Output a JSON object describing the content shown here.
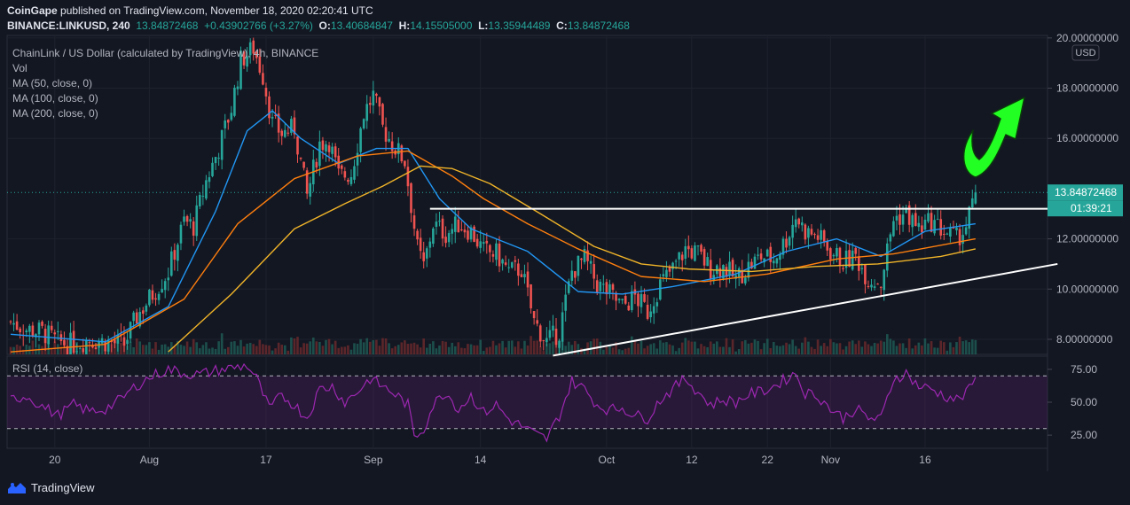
{
  "header": {
    "publisher": "CoinGape",
    "published_text": "published on TradingView.com, November 18, 2020 02:20:41 UTC",
    "symbol": "BINANCE:LINKUSD, 240",
    "price": "13.84872468",
    "change": "+0.43902766 (+3.27%)",
    "o_label": "O:",
    "o_value": "13.40684847",
    "h_label": "H:",
    "h_value": "14.15505000",
    "l_label": "L:",
    "l_value": "13.35944489",
    "c_label": "C:",
    "c_value": "13.84872468"
  },
  "legend": {
    "title": "ChainLink / US Dollar (calculated by TradingView), 4h, BINANCE",
    "vol": "Vol",
    "ma50": "MA (50, close, 0)",
    "ma100": "MA (100, close, 0)",
    "ma200": "MA (200, close, 0)"
  },
  "rsi_label": "RSI (14, close)",
  "currency": "USD",
  "last_price_label": "13.84872468",
  "countdown": "01:39:21",
  "footer_brand": "TradingView",
  "colors": {
    "bg": "#131722",
    "up": "#26a69a",
    "down": "#ef5350",
    "ma50": "#2196f3",
    "ma100": "#ff7f0e",
    "ma200": "#f0b429",
    "rsi": "#9c27b0",
    "arrow": "#22ff22"
  },
  "chart_data": {
    "type": "candlestick",
    "symbol": "LINKUSD",
    "timeframe": "4h",
    "y_ticks": [
      "20.00000000",
      "18.00000000",
      "16.00000000",
      "12.00000000",
      "10.00000000",
      "8.00000000"
    ],
    "ylim": [
      7.4,
      20.1
    ],
    "x_ticks": [
      "20",
      "Aug",
      "17",
      "Sep",
      "14",
      "Oct",
      "12",
      "22",
      "Nov",
      "16"
    ],
    "close_path": [
      [
        0,
        8.7
      ],
      [
        5,
        8.4
      ],
      [
        10,
        8.3
      ],
      [
        15,
        7.9
      ],
      [
        20,
        7.8
      ],
      [
        25,
        8.0
      ],
      [
        30,
        7.9
      ],
      [
        36,
        7.8
      ],
      [
        40,
        8.9
      ],
      [
        45,
        9.8
      ],
      [
        50,
        10.7
      ],
      [
        55,
        12.7
      ],
      [
        58,
        12.5
      ],
      [
        62,
        14.3
      ],
      [
        66,
        15.6
      ],
      [
        70,
        17.2
      ],
      [
        73,
        19.1
      ],
      [
        77,
        19.6
      ],
      [
        80,
        18.5
      ],
      [
        83,
        16.6
      ],
      [
        86,
        16.2
      ],
      [
        90,
        16.4
      ],
      [
        94,
        13.7
      ],
      [
        98,
        15.8
      ],
      [
        101,
        15.9
      ],
      [
        104,
        14.5
      ],
      [
        108,
        14.6
      ],
      [
        112,
        17.0
      ],
      [
        115,
        17.7
      ],
      [
        118,
        16.4
      ],
      [
        121,
        15.8
      ],
      [
        125,
        15.1
      ],
      [
        129,
        11.6
      ],
      [
        131,
        10.9
      ],
      [
        134,
        12.6
      ],
      [
        138,
        12.2
      ],
      [
        142,
        12.6
      ],
      [
        146,
        12.3
      ],
      [
        150,
        11.5
      ],
      [
        154,
        11.4
      ],
      [
        158,
        10.7
      ],
      [
        162,
        10.8
      ],
      [
        166,
        8.7
      ],
      [
        170,
        7.9
      ],
      [
        174,
        8.3
      ],
      [
        178,
        10.7
      ],
      [
        182,
        11.2
      ],
      [
        186,
        10.2
      ],
      [
        190,
        9.8
      ],
      [
        194,
        9.3
      ],
      [
        198,
        9.7
      ],
      [
        202,
        9.1
      ],
      [
        206,
        10.2
      ],
      [
        210,
        10.8
      ],
      [
        214,
        11.6
      ],
      [
        218,
        11.4
      ],
      [
        222,
        10.8
      ],
      [
        226,
        10.9
      ],
      [
        230,
        10.4
      ],
      [
        234,
        10.9
      ],
      [
        238,
        11.3
      ],
      [
        242,
        11.2
      ],
      [
        246,
        12.0
      ],
      [
        249,
        12.9
      ],
      [
        252,
        12.3
      ],
      [
        256,
        12.1
      ],
      [
        260,
        11.5
      ],
      [
        264,
        11.1
      ],
      [
        268,
        11.3
      ],
      [
        272,
        10.4
      ],
      [
        276,
        10.3
      ],
      [
        280,
        12.8
      ],
      [
        284,
        13.0
      ],
      [
        288,
        12.4
      ],
      [
        292,
        12.7
      ],
      [
        296,
        12.3
      ],
      [
        300,
        12.0
      ],
      [
        303,
        12.5
      ],
      [
        305,
        13.4
      ],
      [
        306,
        13.85
      ]
    ],
    "overlays": {
      "ma50": [
        [
          0,
          8.2
        ],
        [
          30,
          7.9
        ],
        [
          50,
          9.3
        ],
        [
          65,
          13.1
        ],
        [
          75,
          16.3
        ],
        [
          83,
          17.1
        ],
        [
          92,
          16.0
        ],
        [
          104,
          15.0
        ],
        [
          116,
          15.6
        ],
        [
          126,
          15.6
        ],
        [
          136,
          13.6
        ],
        [
          146,
          12.4
        ],
        [
          164,
          11.5
        ],
        [
          180,
          9.9
        ],
        [
          194,
          9.8
        ],
        [
          210,
          10.1
        ],
        [
          230,
          10.6
        ],
        [
          246,
          11.5
        ],
        [
          262,
          12.0
        ],
        [
          276,
          11.3
        ],
        [
          290,
          12.3
        ],
        [
          306,
          12.6
        ]
      ],
      "ma100": [
        [
          0,
          7.5
        ],
        [
          30,
          7.8
        ],
        [
          55,
          9.6
        ],
        [
          72,
          12.6
        ],
        [
          90,
          14.4
        ],
        [
          110,
          15.3
        ],
        [
          126,
          15.5
        ],
        [
          140,
          14.5
        ],
        [
          150,
          13.6
        ],
        [
          164,
          12.6
        ],
        [
          180,
          11.6
        ],
        [
          200,
          10.5
        ],
        [
          220,
          10.3
        ],
        [
          240,
          10.6
        ],
        [
          262,
          11.2
        ],
        [
          280,
          11.4
        ],
        [
          306,
          12.0
        ]
      ],
      "ma200": [
        [
          50,
          7.5
        ],
        [
          70,
          9.8
        ],
        [
          90,
          12.4
        ],
        [
          106,
          13.4
        ],
        [
          118,
          14.1
        ],
        [
          130,
          14.9
        ],
        [
          140,
          14.8
        ],
        [
          152,
          14.2
        ],
        [
          168,
          13.0
        ],
        [
          185,
          11.7
        ],
        [
          200,
          11.0
        ],
        [
          215,
          10.8
        ],
        [
          235,
          10.7
        ],
        [
          255,
          10.9
        ],
        [
          275,
          11.0
        ],
        [
          295,
          11.3
        ],
        [
          306,
          11.6
        ]
      ]
    },
    "trendlines": {
      "resistance": [
        [
          133,
          13.2
        ],
        [
          332,
          13.2
        ]
      ],
      "support": [
        [
          172,
          7.35
        ],
        [
          332,
          11.0
        ]
      ]
    },
    "rsi": {
      "name": "RSI (14, close)",
      "ticks": [
        "75.00",
        "50.00",
        "25.00"
      ],
      "band": [
        30,
        70
      ],
      "ylim": [
        15,
        85
      ],
      "path": [
        [
          0,
          52
        ],
        [
          5,
          55
        ],
        [
          10,
          47
        ],
        [
          15,
          40
        ],
        [
          20,
          48
        ],
        [
          25,
          43
        ],
        [
          30,
          45
        ],
        [
          35,
          52
        ],
        [
          40,
          63
        ],
        [
          45,
          70
        ],
        [
          50,
          75
        ],
        [
          55,
          72
        ],
        [
          60,
          71
        ],
        [
          65,
          74
        ],
        [
          70,
          76
        ],
        [
          75,
          78
        ],
        [
          78,
          68
        ],
        [
          82,
          45
        ],
        [
          86,
          55
        ],
        [
          90,
          48
        ],
        [
          94,
          38
        ],
        [
          98,
          60
        ],
        [
          102,
          62
        ],
        [
          106,
          50
        ],
        [
          110,
          58
        ],
        [
          114,
          68
        ],
        [
          118,
          62
        ],
        [
          122,
          56
        ],
        [
          126,
          48
        ],
        [
          128,
          24
        ],
        [
          131,
          30
        ],
        [
          134,
          48
        ],
        [
          138,
          58
        ],
        [
          142,
          45
        ],
        [
          146,
          55
        ],
        [
          150,
          42
        ],
        [
          154,
          48
        ],
        [
          158,
          37
        ],
        [
          162,
          32
        ],
        [
          166,
          26
        ],
        [
          170,
          22
        ],
        [
          174,
          40
        ],
        [
          178,
          66
        ],
        [
          182,
          60
        ],
        [
          186,
          48
        ],
        [
          190,
          44
        ],
        [
          194,
          46
        ],
        [
          198,
          40
        ],
        [
          202,
          38
        ],
        [
          206,
          52
        ],
        [
          210,
          60
        ],
        [
          214,
          68
        ],
        [
          218,
          58
        ],
        [
          222,
          48
        ],
        [
          226,
          52
        ],
        [
          230,
          50
        ],
        [
          234,
          56
        ],
        [
          238,
          58
        ],
        [
          242,
          62
        ],
        [
          246,
          68
        ],
        [
          249,
          72
        ],
        [
          252,
          57
        ],
        [
          256,
          55
        ],
        [
          260,
          45
        ],
        [
          264,
          38
        ],
        [
          268,
          45
        ],
        [
          272,
          38
        ],
        [
          276,
          37
        ],
        [
          280,
          68
        ],
        [
          284,
          72
        ],
        [
          288,
          62
        ],
        [
          292,
          60
        ],
        [
          296,
          55
        ],
        [
          300,
          52
        ],
        [
          303,
          56
        ],
        [
          306,
          69
        ]
      ]
    }
  }
}
